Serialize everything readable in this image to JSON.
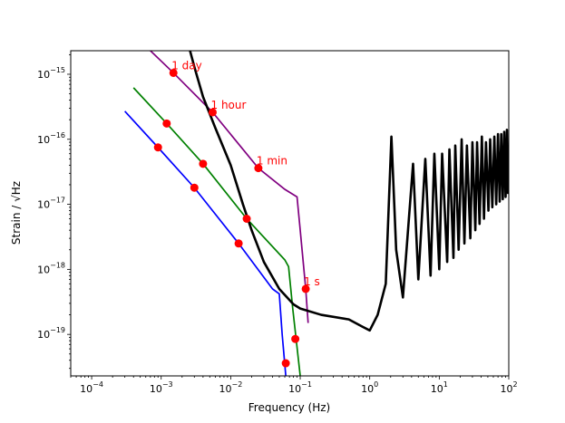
{
  "chart_data": {
    "type": "line",
    "title": "",
    "xlabel": "Frequency (Hz)",
    "ylabel": "Strain / √Hz",
    "xscale": "log",
    "yscale": "log",
    "xlim": [
      5e-05,
      100
    ],
    "ylim": [
      2.3e-20,
      2.3e-15
    ],
    "grid": false,
    "legend": "none",
    "x_ticks": [
      {
        "value": 0.0001,
        "base": "10",
        "exp": "−4"
      },
      {
        "value": 0.001,
        "base": "10",
        "exp": "−3"
      },
      {
        "value": 0.01,
        "base": "10",
        "exp": "−2"
      },
      {
        "value": 0.1,
        "base": "10",
        "exp": "−1"
      },
      {
        "value": 1,
        "base": "10",
        "exp": "0"
      },
      {
        "value": 10,
        "base": "10",
        "exp": "1"
      },
      {
        "value": 100,
        "base": "10",
        "exp": "2"
      }
    ],
    "y_ticks": [
      {
        "value": 1e-19,
        "base": "10",
        "exp": "−19"
      },
      {
        "value": 1e-18,
        "base": "10",
        "exp": "−18"
      },
      {
        "value": 1e-17,
        "base": "10",
        "exp": "−17"
      },
      {
        "value": 1e-16,
        "base": "10",
        "exp": "−16"
      },
      {
        "value": 1e-15,
        "base": "10",
        "exp": "−15"
      }
    ],
    "sensitivity_curve": {
      "color": "#000000",
      "points": [
        [
          0.0026,
          2.3e-15
        ],
        [
          0.003,
          1.3e-15
        ],
        [
          0.004,
          4.5e-16
        ],
        [
          0.006,
          1.5e-16
        ],
        [
          0.01,
          4e-17
        ],
        [
          0.015,
          1e-17
        ],
        [
          0.02,
          4e-18
        ],
        [
          0.03,
          1.3e-18
        ],
        [
          0.05,
          5e-19
        ],
        [
          0.08,
          2.9e-19
        ],
        [
          0.1,
          2.5e-19
        ],
        [
          0.2,
          2e-19
        ],
        [
          0.5,
          1.7e-19
        ],
        [
          0.8,
          1.3e-19
        ],
        [
          1.0,
          1.15e-19
        ],
        [
          1.3,
          2e-19
        ],
        [
          1.7,
          6e-19
        ],
        [
          2.05,
          1.1e-16
        ],
        [
          2.4,
          2e-18
        ],
        [
          3.0,
          3.7e-19
        ],
        [
          4.2,
          4.2e-17
        ],
        [
          5,
          7e-19
        ],
        [
          6.3,
          5e-17
        ],
        [
          7.5,
          8e-19
        ],
        [
          8.5,
          6e-17
        ],
        [
          10,
          1e-18
        ],
        [
          11,
          6e-17
        ],
        [
          13,
          1.3e-18
        ],
        [
          14,
          7e-17
        ],
        [
          16,
          1.5e-18
        ],
        [
          17,
          8e-17
        ],
        [
          19,
          2e-18
        ],
        [
          21,
          1e-16
        ],
        [
          23,
          2.5e-18
        ],
        [
          25,
          8e-17
        ],
        [
          28,
          3e-18
        ],
        [
          30,
          9e-17
        ],
        [
          33,
          4e-18
        ],
        [
          35,
          9e-17
        ],
        [
          38,
          5e-18
        ],
        [
          41,
          1.1e-16
        ],
        [
          44,
          6e-18
        ],
        [
          47,
          9e-17
        ],
        [
          51,
          8e-18
        ],
        [
          54,
          1e-16
        ],
        [
          58,
          9e-18
        ],
        [
          62,
          1.1e-16
        ],
        [
          66,
          1e-17
        ],
        [
          70,
          1.2e-16
        ],
        [
          74,
          1.1e-17
        ],
        [
          78,
          1.2e-16
        ],
        [
          82,
          1.2e-17
        ],
        [
          86,
          1.3e-16
        ],
        [
          90,
          1.3e-17
        ],
        [
          94,
          1.4e-16
        ],
        [
          97,
          1.5e-17
        ],
        [
          100,
          1.6e-17
        ]
      ]
    },
    "series": [
      {
        "color": "#0000ff",
        "points": [
          [
            0.0003,
            2.7e-16
          ],
          [
            0.0009,
            7.5e-17
          ],
          [
            0.003,
            1.8e-17
          ],
          [
            0.013,
            2.5e-18
          ],
          [
            0.04,
            5e-19
          ],
          [
            0.05,
            4.2e-19
          ],
          [
            0.055,
            1e-19
          ],
          [
            0.062,
            2.3e-20
          ]
        ],
        "markers": [
          [
            0.0009,
            7.5e-17
          ],
          [
            0.003,
            1.8e-17
          ],
          [
            0.013,
            2.5e-18
          ],
          [
            0.062,
            3.6e-20
          ]
        ]
      },
      {
        "color": "#008000",
        "points": [
          [
            0.0004,
            6.2e-16
          ],
          [
            0.0012,
            1.75e-16
          ],
          [
            0.004,
            4.2e-17
          ],
          [
            0.017,
            6e-18
          ],
          [
            0.06,
            1.4e-18
          ],
          [
            0.068,
            1.1e-18
          ],
          [
            0.078,
            2.5e-19
          ],
          [
            0.1,
            2.3e-20
          ]
        ],
        "markers": [
          [
            0.0012,
            1.75e-16
          ],
          [
            0.004,
            4.2e-17
          ],
          [
            0.017,
            6e-18
          ],
          [
            0.085,
            8.5e-20
          ]
        ]
      },
      {
        "color": "#800080",
        "points": [
          [
            0.0007,
            2.3e-15
          ],
          [
            0.0015,
            1.05e-15
          ],
          [
            0.0055,
            2.6e-16
          ],
          [
            0.025,
            3.6e-17
          ],
          [
            0.06,
            1.7e-17
          ],
          [
            0.09,
            1.3e-17
          ],
          [
            0.1,
            4e-18
          ],
          [
            0.12,
            5e-19
          ],
          [
            0.13,
            1.5e-19
          ]
        ],
        "markers": [
          [
            0.0015,
            1.05e-15
          ],
          [
            0.0055,
            2.6e-16
          ],
          [
            0.025,
            3.6e-17
          ],
          [
            0.12,
            5e-19
          ]
        ]
      }
    ],
    "annotations": [
      {
        "text": "1 day",
        "x": 0.0015,
        "y": 1.05e-15
      },
      {
        "text": "1 hour",
        "x": 0.0055,
        "y": 2.6e-16
      },
      {
        "text": "1 min",
        "x": 0.025,
        "y": 3.6e-17
      },
      {
        "text": "1 s",
        "x": 0.12,
        "y": 5e-19
      }
    ],
    "marker_color": "#ff0000"
  }
}
